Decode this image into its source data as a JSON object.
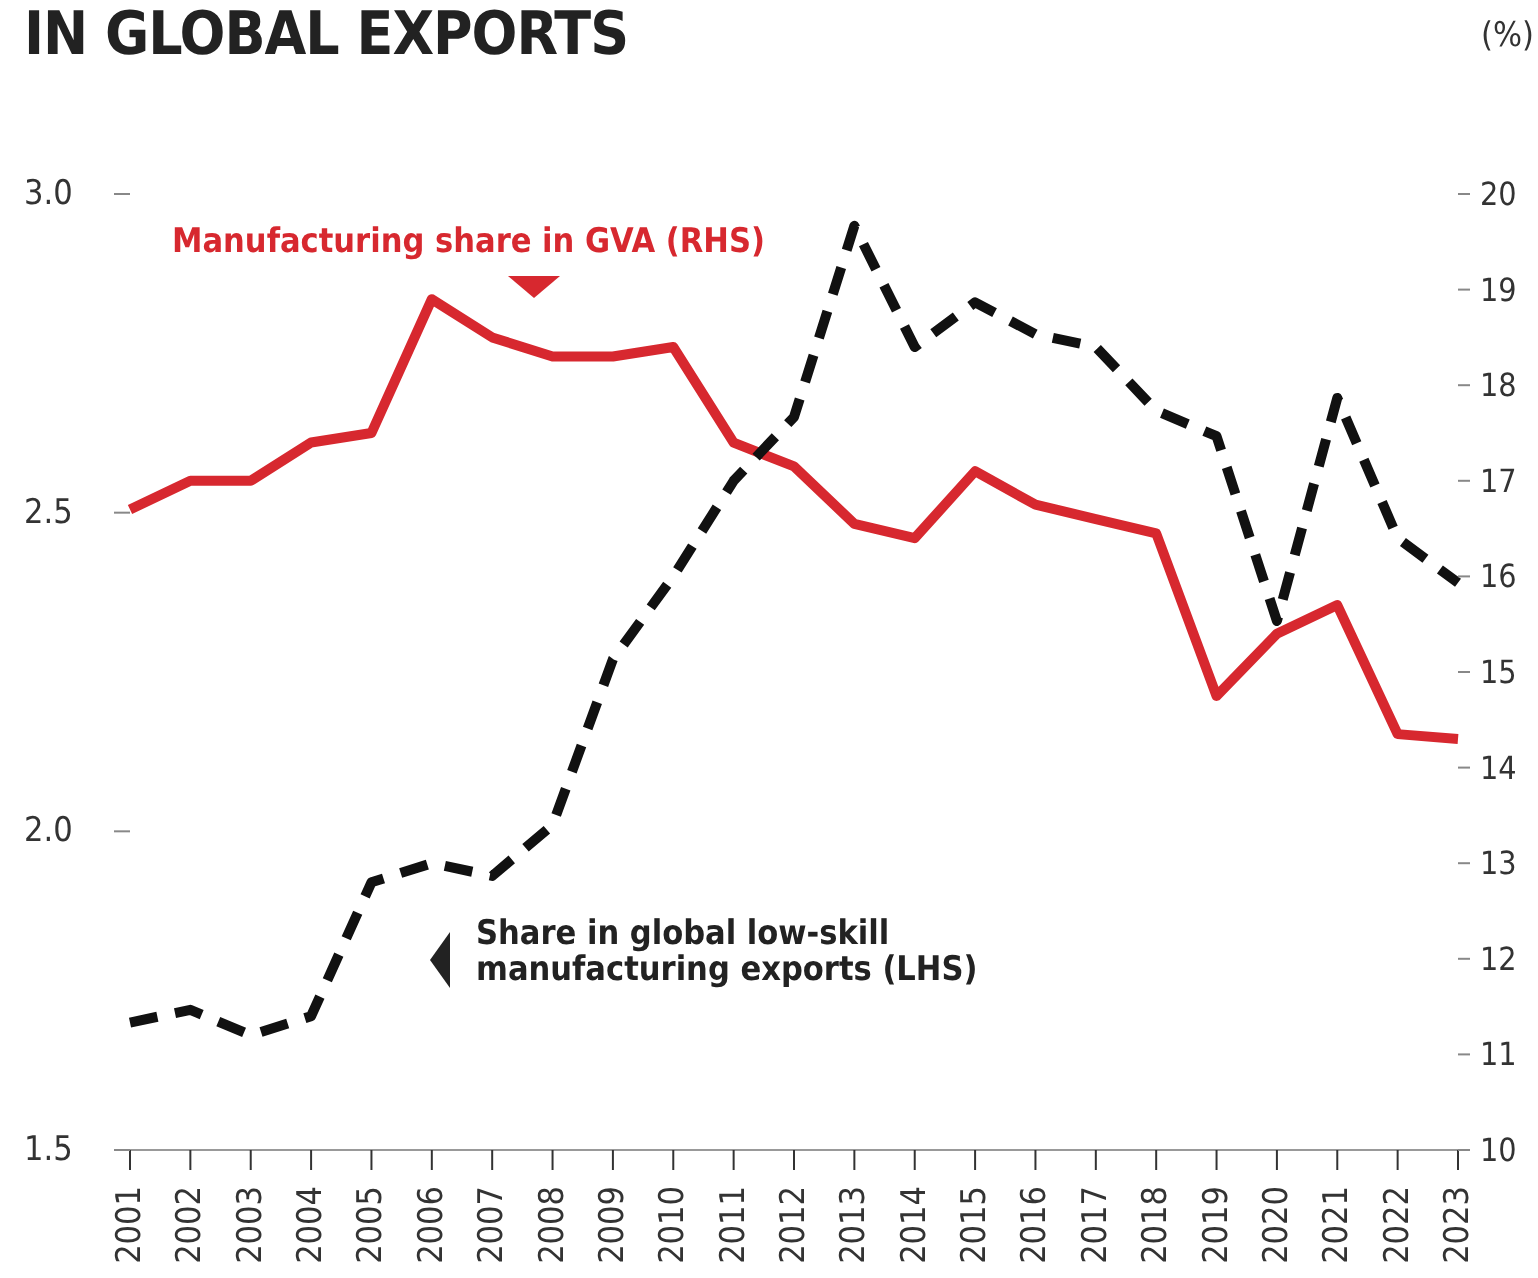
{
  "chart_data": {
    "type": "line",
    "title": "IN GLOBAL EXPORTS",
    "y2label": "(%)",
    "categories": [
      "2001",
      "2002",
      "2003",
      "2004",
      "2005",
      "2006",
      "2007",
      "2008",
      "2009",
      "2010",
      "2011",
      "2012",
      "2013",
      "2014",
      "2015",
      "2016",
      "2017",
      "2018",
      "2019",
      "2020",
      "2021",
      "2022",
      "2023"
    ],
    "series": [
      {
        "name": "Manufacturing share in GVA (RHS)",
        "color": "#d7282f",
        "axis": "y2",
        "line_style": "solid",
        "values": [
          16.7,
          17.0,
          17.0,
          17.4,
          17.5,
          18.9,
          18.5,
          18.3,
          18.3,
          18.4,
          17.4,
          17.15,
          16.55,
          16.4,
          17.1,
          16.75,
          16.6,
          16.45,
          14.75,
          15.4,
          15.7,
          14.35,
          14.3
        ]
      },
      {
        "name": "Share in global low-skill manufacturing exports (LHS)",
        "color": "#111111",
        "line_style": "dashed",
        "values": [
          1.7,
          1.72,
          1.68,
          1.71,
          1.92,
          1.95,
          1.93,
          2.01,
          2.27,
          2.4,
          2.55,
          2.65,
          2.95,
          2.76,
          2.83,
          2.78,
          2.76,
          2.66,
          2.62,
          2.33,
          2.68,
          2.46,
          2.39
        ]
      }
    ],
    "ylim": [
      1.5,
      3.0
    ],
    "yticks": [
      {
        "value": 1.5,
        "label": "1.5"
      },
      {
        "value": 2,
        "label": "2.0"
      },
      {
        "value": 2.5,
        "label": "2.5"
      },
      {
        "value": 3,
        "label": "3.0"
      }
    ],
    "y2lim": [
      10,
      20
    ],
    "y2ticks": [
      10,
      11,
      12,
      13,
      14,
      15,
      16,
      17,
      18,
      19,
      20
    ],
    "grid": false,
    "legend": false,
    "marker": "none"
  }
}
